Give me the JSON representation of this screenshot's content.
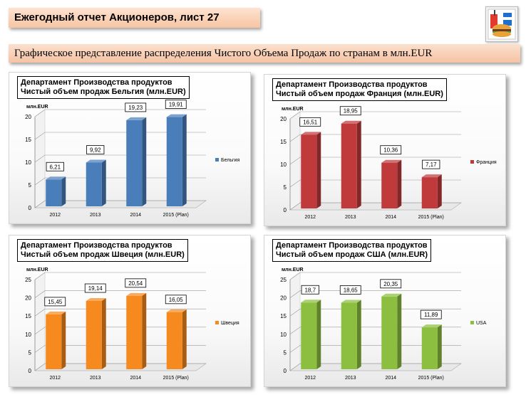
{
  "header": {
    "title": "Ежегодный отчет Акционеров, лист 27",
    "subtitle": "Графическое представление распределения Чистого Объема Продаж по странам в млн.EUR"
  },
  "logo": {
    "icon": "fast-food-icon"
  },
  "chart_data": [
    {
      "type": "bar",
      "title_line1": "Департамент Производства продуктов",
      "title_line2": "Чистый  объем продаж Бельгия (млн.EUR)",
      "ylabel": "млн.EUR",
      "categories": [
        "2012",
        "2013",
        "2014",
        "2015 (Plan)"
      ],
      "series": [
        {
          "name": "Бельгия",
          "values": [
            6.21,
            9.92,
            19.23,
            19.91
          ],
          "labels": [
            "6,21",
            "9,92",
            "19,23",
            "19,91"
          ]
        }
      ],
      "ylim": [
        0,
        20
      ],
      "yticks": [
        "0",
        "5",
        "10",
        "15",
        "20"
      ],
      "color": "#4a7ebb",
      "legend": "right",
      "grid": true
    },
    {
      "type": "bar",
      "title_line1": "Департамент Производства продуктов",
      "title_line2": "Чистый  объем продаж Франция  (млн.EUR)",
      "ylabel": "млн.EUR",
      "categories": [
        "2012",
        "2013",
        "2014",
        "2015 (Plan)"
      ],
      "series": [
        {
          "name": "Франция",
          "values": [
            16.51,
            18.95,
            10.36,
            7.17
          ],
          "labels": [
            "16,51",
            "18,95",
            "10,36",
            "7,17"
          ]
        }
      ],
      "ylim": [
        0,
        20
      ],
      "yticks": [
        "0",
        "5",
        "10",
        "15",
        "20"
      ],
      "color": "#c0393b",
      "legend": "right",
      "grid": true
    },
    {
      "type": "bar",
      "title_line1": "Департамент Производства продуктов",
      "title_line2": "Чистый  объем продаж Швеция (млн.EUR)",
      "ylabel": "млн.EUR",
      "categories": [
        "2012",
        "2013",
        "2014",
        "2015 (Plan)"
      ],
      "series": [
        {
          "name": "Швеция",
          "values": [
            15.45,
            19.14,
            20.54,
            16.05
          ],
          "labels": [
            "15,45",
            "19,14",
            "20,54",
            "16,05"
          ]
        }
      ],
      "ylim": [
        0,
        25
      ],
      "yticks": [
        "0",
        "5",
        "10",
        "15",
        "20",
        "25"
      ],
      "color": "#f68a1e",
      "legend": "right",
      "grid": true
    },
    {
      "type": "bar",
      "title_line1": "Департамент Производства продуктов",
      "title_line2": "Чистый  объем продаж США (млн.EUR)",
      "ylabel": "млн.EUR",
      "categories": [
        "2012",
        "2013",
        "2014",
        "2015 (Plan)"
      ],
      "series": [
        {
          "name": "USA",
          "values": [
            18.7,
            18.65,
            20.35,
            11.89
          ],
          "labels": [
            "18,7",
            "18,65",
            "20,35",
            "11,89"
          ]
        }
      ],
      "ylim": [
        0,
        25
      ],
      "yticks": [
        "0",
        "5",
        "10",
        "15",
        "20",
        "25"
      ],
      "color": "#8cbf3f",
      "legend": "right",
      "grid": true
    }
  ]
}
